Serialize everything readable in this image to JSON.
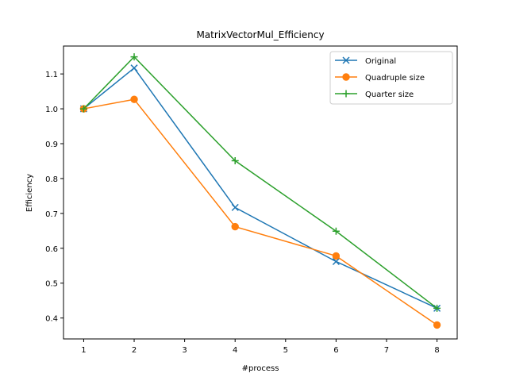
{
  "chart_data": {
    "type": "line",
    "title": "MatrixVectorMul_Efficiency",
    "xlabel": "#process",
    "ylabel": "Efficiency",
    "xlim": [
      0.6,
      8.4
    ],
    "ylim": [
      0.34,
      1.18
    ],
    "xticks": [
      1,
      2,
      3,
      4,
      5,
      6,
      7,
      8
    ],
    "yticks": [
      0.4,
      0.5,
      0.6,
      0.7,
      0.8,
      0.9,
      1.0,
      1.1
    ],
    "ytick_labels": [
      "0.4",
      "0.5",
      "0.6",
      "0.7",
      "0.8",
      "0.9",
      "1.0",
      "1.1"
    ],
    "grid": false,
    "legend_position": "top-right",
    "x": [
      1,
      2,
      4,
      6,
      8
    ],
    "series": [
      {
        "name": "Original",
        "values": [
          1.0,
          1.117,
          0.717,
          0.562,
          0.428
        ],
        "color": "#1f77b4",
        "marker": "x"
      },
      {
        "name": "Quadruple size",
        "values": [
          1.0,
          1.027,
          0.662,
          0.578,
          0.38
        ],
        "color": "#ff7f0e",
        "marker": "o"
      },
      {
        "name": "Quarter size",
        "values": [
          1.0,
          1.149,
          0.851,
          0.649,
          0.428
        ],
        "color": "#2ca02c",
        "marker": "+"
      }
    ]
  }
}
